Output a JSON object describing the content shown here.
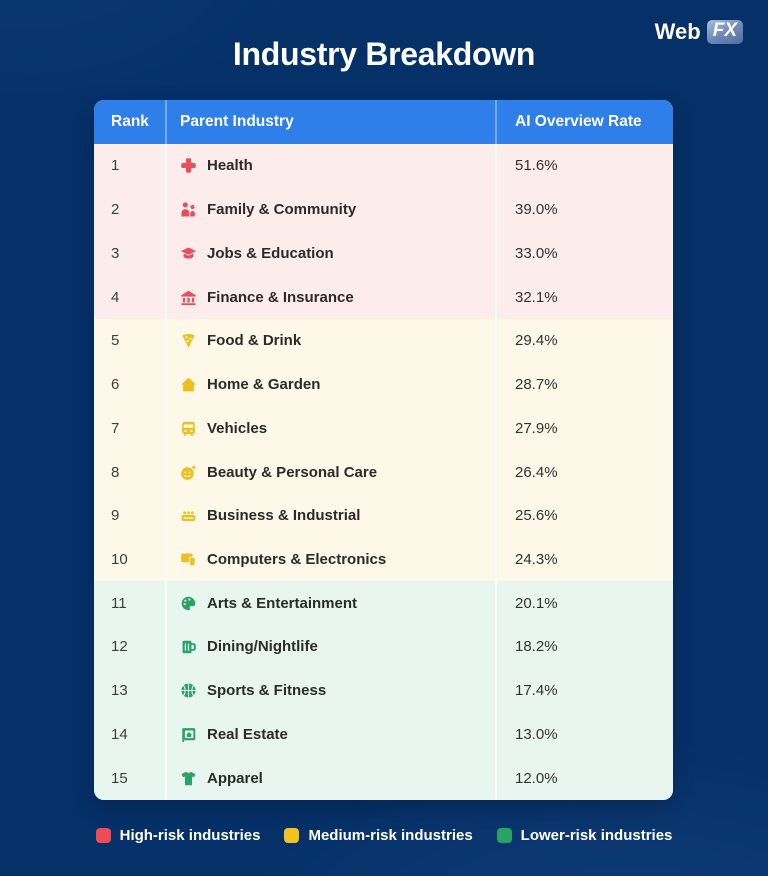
{
  "logo": {
    "prefix": "Web",
    "suffix": "FX"
  },
  "header": {
    "title": "Industry Breakdown"
  },
  "table": {
    "headers": [
      "Rank",
      "Parent Industry",
      "AI Overview Rate"
    ]
  },
  "legend": {
    "items": [
      {
        "label": "High-risk industries",
        "color": "#ee4b57"
      },
      {
        "label": "Medium-risk industries",
        "color": "#f0c31f"
      },
      {
        "label": "Lower-risk industries",
        "color": "#27a461"
      }
    ]
  },
  "colors": {
    "background_navy": "#053068",
    "table_header_blue": "#2e7fe9",
    "high_risk_row_bg": "#fcecec",
    "medium_risk_row_bg": "#fdf8e8",
    "low_risk_row_bg": "#e9f5ef",
    "high_risk_accent": "#ea4e59",
    "medium_risk_accent": "#eec01d",
    "low_risk_accent": "#2aa465"
  },
  "chart_data": {
    "type": "table",
    "title": "Industry Breakdown",
    "columns": [
      "Rank",
      "Parent Industry",
      "AI Overview Rate"
    ],
    "rows": [
      {
        "rank": 1,
        "industry": "Health",
        "rate": "51.6%",
        "rate_value": 51.6,
        "risk": "high",
        "icon": "health-cross-icon"
      },
      {
        "rank": 2,
        "industry": "Family & Community",
        "rate": "39.0%",
        "rate_value": 39.0,
        "risk": "high",
        "icon": "family-icon"
      },
      {
        "rank": 3,
        "industry": "Jobs & Education",
        "rate": "33.0%",
        "rate_value": 33.0,
        "risk": "high",
        "icon": "graduation-cap-icon"
      },
      {
        "rank": 4,
        "industry": "Finance & Insurance",
        "rate": "32.1%",
        "rate_value": 32.1,
        "risk": "high",
        "icon": "bank-icon"
      },
      {
        "rank": 5,
        "industry": "Food & Drink",
        "rate": "29.4%",
        "rate_value": 29.4,
        "risk": "medium",
        "icon": "pizza-icon"
      },
      {
        "rank": 6,
        "industry": "Home & Garden",
        "rate": "28.7%",
        "rate_value": 28.7,
        "risk": "medium",
        "icon": "house-icon"
      },
      {
        "rank": 7,
        "industry": "Vehicles",
        "rate": "27.9%",
        "rate_value": 27.9,
        "risk": "medium",
        "icon": "bus-icon"
      },
      {
        "rank": 8,
        "industry": "Beauty & Personal Care",
        "rate": "26.4%",
        "rate_value": 26.4,
        "risk": "medium",
        "icon": "beauty-face-icon"
      },
      {
        "rank": 9,
        "industry": "Business & Industrial",
        "rate": "25.6%",
        "rate_value": 25.6,
        "risk": "medium",
        "icon": "machine-icon"
      },
      {
        "rank": 10,
        "industry": "Computers & Electronics",
        "rate": "24.3%",
        "rate_value": 24.3,
        "risk": "medium",
        "icon": "devices-icon"
      },
      {
        "rank": 11,
        "industry": "Arts & Entertainment",
        "rate": "20.1%",
        "rate_value": 20.1,
        "risk": "low",
        "icon": "palette-icon"
      },
      {
        "rank": 12,
        "industry": "Dining/Nightlife",
        "rate": "18.2%",
        "rate_value": 18.2,
        "risk": "low",
        "icon": "beer-mug-icon"
      },
      {
        "rank": 13,
        "industry": "Sports & Fitness",
        "rate": "17.4%",
        "rate_value": 17.4,
        "risk": "low",
        "icon": "basketball-icon"
      },
      {
        "rank": 14,
        "industry": "Real Estate",
        "rate": "13.0%",
        "rate_value": 13.0,
        "risk": "low",
        "icon": "estate-sign-icon"
      },
      {
        "rank": 15,
        "industry": "Apparel",
        "rate": "12.0%",
        "rate_value": 12.0,
        "risk": "low",
        "icon": "tshirt-icon"
      }
    ],
    "legend": [
      "High-risk industries",
      "Medium-risk industries",
      "Lower-risk industries"
    ],
    "layout": {
      "grid": false,
      "legend_position": "bottom",
      "row_groups": {
        "high": [
          1,
          4
        ],
        "medium": [
          5,
          10
        ],
        "low": [
          11,
          15
        ]
      }
    }
  }
}
